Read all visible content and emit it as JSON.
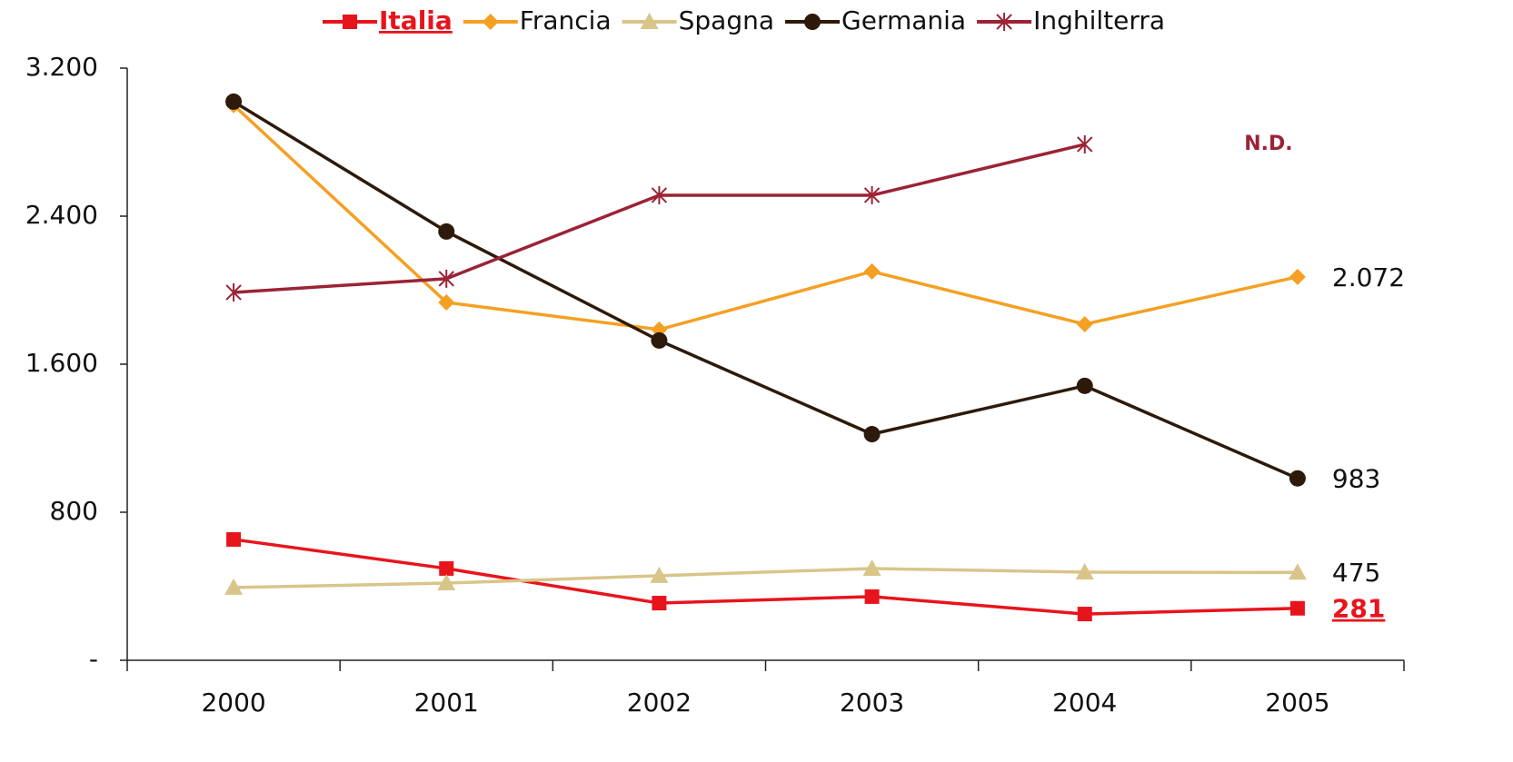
{
  "chart_data": {
    "type": "line",
    "categories": [
      "2000",
      "2001",
      "2002",
      "2003",
      "2004",
      "2005"
    ],
    "series": [
      {
        "name": "Italia",
        "color": "#e8141c",
        "marker": "square",
        "values": [
          653,
          496,
          309,
          344,
          250,
          281
        ],
        "value_labels": [
          null,
          null,
          null,
          null,
          null,
          "281"
        ]
      },
      {
        "name": "Francia",
        "color": "#f5a023",
        "marker": "diamond",
        "values": [
          3000,
          1934,
          1787,
          2101,
          1816,
          2072
        ],
        "value_labels": [
          null,
          null,
          null,
          null,
          null,
          "2.072"
        ]
      },
      {
        "name": "Spagna",
        "color": "#d9c48a",
        "marker": "triangle",
        "values": [
          393,
          417,
          457,
          496,
          476,
          475
        ],
        "value_labels": [
          null,
          null,
          null,
          null,
          null,
          "475"
        ]
      },
      {
        "name": "Germania",
        "color": "#2d1a0a",
        "marker": "circle",
        "values": [
          3019,
          2317,
          1728,
          1222,
          1483,
          983
        ],
        "value_labels": [
          null,
          null,
          null,
          null,
          null,
          "983"
        ]
      },
      {
        "name": "Inghilterra",
        "color": "#9b2335",
        "marker": "asterisk",
        "values": [
          1988,
          2062,
          2513,
          2513,
          2788,
          null
        ]
      }
    ],
    "annotation": "N.D.",
    "ylim": [
      0,
      3200
    ],
    "yticks": [
      {
        "value": 0,
        "label": "-"
      },
      800,
      {
        "value": 1600,
        "label": "1.600"
      },
      {
        "value": 2400,
        "label": "2.400"
      },
      {
        "value": 3200,
        "label": "3.200"
      }
    ],
    "legend": "top"
  }
}
